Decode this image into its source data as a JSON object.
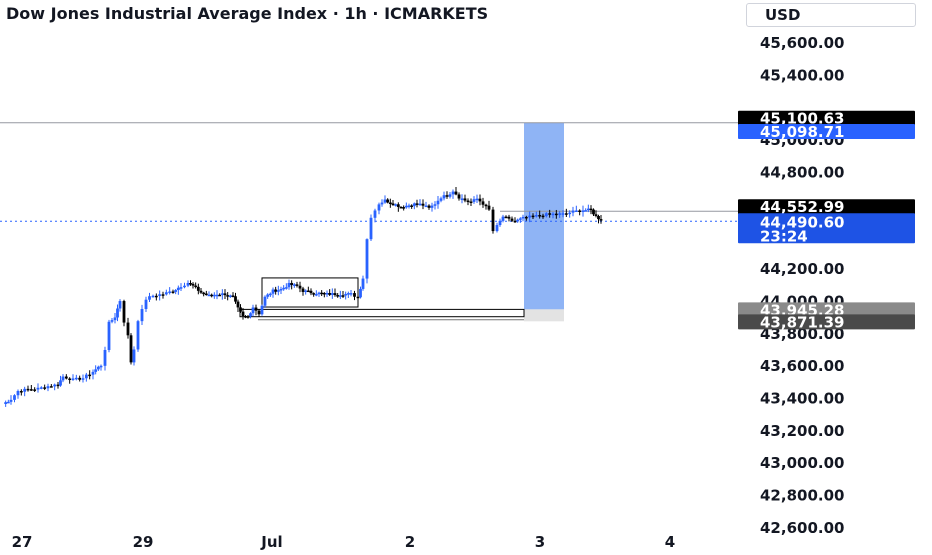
{
  "header": {
    "title": "Dow Jones Industrial Average Index · 1h · ICMARKETS",
    "currency": "USD"
  },
  "colors": {
    "up": "#2962ff",
    "down": "#000000",
    "price_line": "#2962ff",
    "target_zone": "#8fb4f5",
    "gray_zone": "#e3e3e3",
    "axis_text": "#131722",
    "level_line": "#9598a1"
  },
  "price_labels": {
    "level_high": "45,100.63",
    "zone_top": "45,098.71",
    "level_mid": "44,552.99",
    "last_price": "44,490.60",
    "countdown": "23:24",
    "zone_bottom": "43,945.28",
    "level_low": "43,871.39"
  },
  "chart_data": {
    "type": "candlestick",
    "symbol": "Dow Jones Industrial Average Index",
    "interval": "1h",
    "y_ticks": [
      "45,600.00",
      "45,400.00",
      "45,000.00",
      "44,800.00",
      "44,200.00",
      "44,000.00",
      "43,800.00",
      "43,600.00",
      "43,400.00",
      "43,200.00",
      "43,000.00",
      "42,800.00",
      "42,600.00"
    ],
    "x_ticks": [
      "27",
      "29",
      "Jul",
      "2",
      "3",
      "4"
    ],
    "ylim": [
      42580,
      45860
    ],
    "price_levels": {
      "horizontal_high": 45100.63,
      "horizontal_mid": 44552.99,
      "last": 44490.6
    },
    "zones": [
      {
        "name": "target",
        "top": 45098.71,
        "bottom": 43945.28
      },
      {
        "name": "below",
        "top": 43945.28,
        "bottom": 43871.39
      }
    ],
    "rectangles": [
      {
        "top": 44140,
        "bottom": 43960
      },
      {
        "top": 43945.28,
        "bottom": 43900
      }
    ],
    "path": [
      [
        0,
        43360
      ],
      [
        8,
        43390
      ],
      [
        15,
        43440
      ],
      [
        25,
        43450
      ],
      [
        35,
        43455
      ],
      [
        45,
        43470
      ],
      [
        55,
        43480
      ],
      [
        60,
        43530
      ],
      [
        70,
        43510
      ],
      [
        80,
        43520
      ],
      [
        90,
        43560
      ],
      [
        98,
        43600
      ],
      [
        102,
        43700
      ],
      [
        106,
        43860
      ],
      [
        112,
        43900
      ],
      [
        117,
        44000
      ],
      [
        121,
        43870
      ],
      [
        125,
        43780
      ],
      [
        128,
        43620
      ],
      [
        131,
        43700
      ],
      [
        135,
        43880
      ],
      [
        139,
        43940
      ],
      [
        143,
        44010
      ],
      [
        150,
        44030
      ],
      [
        160,
        44040
      ],
      [
        170,
        44060
      ],
      [
        178,
        44090
      ],
      [
        185,
        44110
      ],
      [
        190,
        44090
      ],
      [
        198,
        44050
      ],
      [
        206,
        44030
      ],
      [
        214,
        44040
      ],
      [
        222,
        44040
      ],
      [
        230,
        44020
      ],
      [
        235,
        43950
      ],
      [
        240,
        43900
      ],
      [
        245,
        43900
      ],
      [
        250,
        43960
      ],
      [
        256,
        43920
      ],
      [
        262,
        44020
      ],
      [
        270,
        44060
      ],
      [
        278,
        44070
      ],
      [
        286,
        44100
      ],
      [
        294,
        44090
      ],
      [
        300,
        44060
      ],
      [
        308,
        44050
      ],
      [
        316,
        44045
      ],
      [
        324,
        44040
      ],
      [
        332,
        44040
      ],
      [
        340,
        44040
      ],
      [
        348,
        44040
      ],
      [
        355,
        44020
      ],
      [
        360,
        44140
      ],
      [
        364,
        44380
      ],
      [
        368,
        44520
      ],
      [
        372,
        44560
      ],
      [
        376,
        44600
      ],
      [
        382,
        44620
      ],
      [
        390,
        44600
      ],
      [
        398,
        44580
      ],
      [
        406,
        44590
      ],
      [
        414,
        44600
      ],
      [
        420,
        44590
      ],
      [
        426,
        44570
      ],
      [
        432,
        44600
      ],
      [
        438,
        44640
      ],
      [
        444,
        44650
      ],
      [
        450,
        44680
      ],
      [
        456,
        44640
      ],
      [
        462,
        44620
      ],
      [
        468,
        44610
      ],
      [
        474,
        44630
      ],
      [
        480,
        44600
      ],
      [
        486,
        44560
      ],
      [
        490,
        44430
      ],
      [
        494,
        44460
      ],
      [
        500,
        44520
      ],
      [
        506,
        44500
      ],
      [
        512,
        44490
      ],
      [
        520,
        44510
      ],
      [
        530,
        44520
      ],
      [
        540,
        44530
      ],
      [
        550,
        44535
      ],
      [
        560,
        44535
      ],
      [
        570,
        44550
      ],
      [
        580,
        44560
      ],
      [
        588,
        44560
      ],
      [
        593,
        44520
      ],
      [
        598,
        44500
      ]
    ]
  }
}
